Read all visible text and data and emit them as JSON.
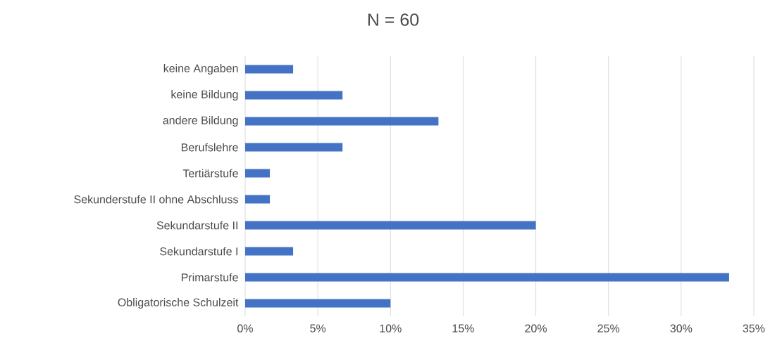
{
  "chart_data": {
    "type": "bar",
    "orientation": "horizontal",
    "title": "N = 60",
    "categories": [
      "keine Angaben",
      "keine Bildung",
      "andere Bildung",
      "Berufslehre",
      "Tertiärstufe",
      "Sekunderstufe II ohne Abschluss",
      "Sekundarstufe II",
      "Sekundarstufe I",
      "Primarstufe",
      "Obligatorische Schulzeit"
    ],
    "values": [
      3.3,
      6.7,
      13.3,
      6.7,
      1.7,
      1.7,
      20,
      3.3,
      33.3,
      10
    ],
    "color": "#4472c4",
    "xlim": [
      0,
      35
    ],
    "xticks": [
      {
        "value": 0,
        "label": "0%"
      },
      {
        "value": 5,
        "label": "5%"
      },
      {
        "value": 10,
        "label": "10%"
      },
      {
        "value": 15,
        "label": "15%"
      },
      {
        "value": 20,
        "label": "20%"
      },
      {
        "value": 25,
        "label": "25%"
      },
      {
        "value": 30,
        "label": "30%"
      },
      {
        "value": 35,
        "label": "35%"
      }
    ],
    "grid": "x"
  }
}
